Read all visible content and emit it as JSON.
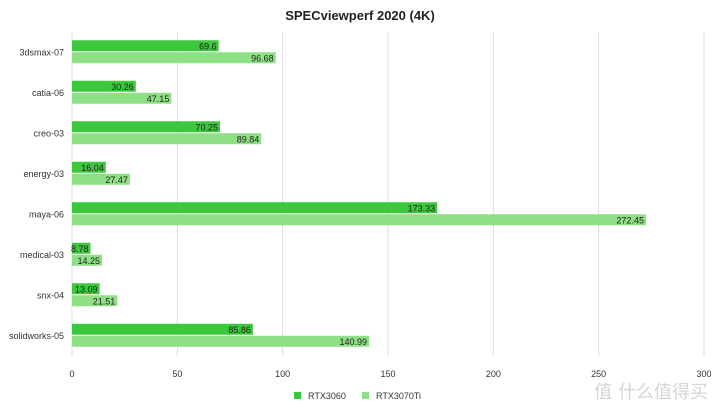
{
  "chart_data": {
    "type": "bar",
    "orientation": "horizontal",
    "title": "SPECviewperf 2020 (4K)",
    "xlabel": "",
    "ylabel": "",
    "categories": [
      "3dsmax-07",
      "catia-06",
      "creo-03",
      "energy-03",
      "maya-06",
      "medical-03",
      "snx-04",
      "solidworks-05"
    ],
    "series": [
      {
        "name": "RTX3060",
        "color": "#3dc73d",
        "values": [
          69.6,
          30.26,
          70.25,
          16.04,
          173.33,
          8.78,
          13.09,
          85.86
        ]
      },
      {
        "name": "RTX3070Ti",
        "color": "#8fdf86",
        "values": [
          96.68,
          47.15,
          89.84,
          27.47,
          272.45,
          14.25,
          21.51,
          140.99
        ]
      }
    ],
    "xlim": [
      0,
      300
    ],
    "xticks": [
      "0",
      "50",
      "100",
      "150",
      "200",
      "250",
      "300"
    ],
    "grid": "vertical",
    "legend_position": "bottom",
    "data_labels": true
  },
  "watermark": "值 什么值得买"
}
